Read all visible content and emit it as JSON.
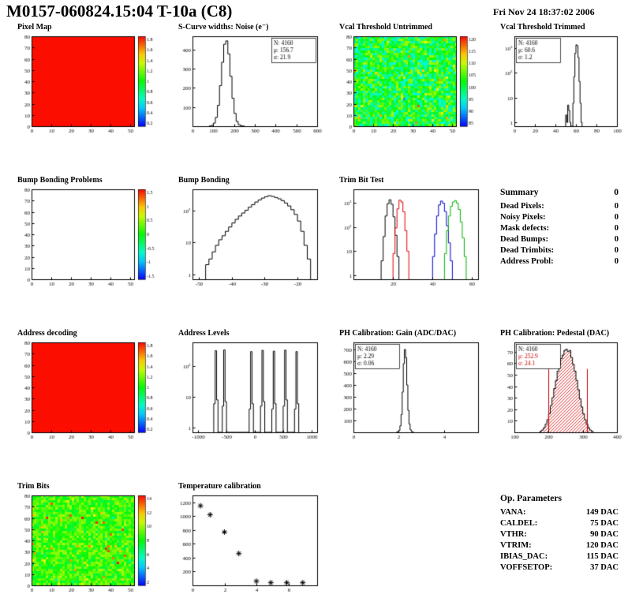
{
  "header": {
    "title": "M0157-060824.15:04 T-10a (C8)",
    "date": "Fri Nov 24 18:37:02 2006"
  },
  "summary": {
    "title": "Summary",
    "total": "0",
    "rows": [
      {
        "label": "Dead Pixels:",
        "value": "0"
      },
      {
        "label": "Noisy Pixels:",
        "value": "0"
      },
      {
        "label": "Mask defects:",
        "value": "0"
      },
      {
        "label": "Dead Bumps:",
        "value": "0"
      },
      {
        "label": "Dead Trimbits:",
        "value": "0"
      },
      {
        "label": "Address Probl:",
        "value": "0"
      }
    ]
  },
  "op_parameters": {
    "title": "Op. Parameters",
    "rows": [
      {
        "label": "VANA:",
        "value": "149 DAC"
      },
      {
        "label": "CALDEL:",
        "value": "75 DAC"
      },
      {
        "label": "VTHR:",
        "value": "90 DAC"
      },
      {
        "label": "VTRIM:",
        "value": "120 DAC"
      },
      {
        "label": "IBIAS_DAC:",
        "value": "115 DAC"
      },
      {
        "label": "VOFFSETOP:",
        "value": "37 DAC"
      }
    ]
  },
  "chart_data": [
    {
      "type": "heatmap",
      "title": "Pixel Map",
      "fill_style": "uniform",
      "color": "#fb0d00",
      "xlim": [
        0,
        52
      ],
      "ylim": [
        0,
        80
      ],
      "xticks": [
        0,
        10,
        20,
        30,
        40,
        50
      ],
      "yticks": [
        0,
        10,
        20,
        30,
        40,
        50,
        60,
        70,
        80
      ],
      "colorbar_ticks": [
        "1.8",
        "1.6",
        "1.4",
        "1.2",
        "1",
        "0.8",
        "0.6",
        "0.4",
        "0.2"
      ]
    },
    {
      "type": "histogram",
      "title": "S-Curve widths: Noise (e⁻)",
      "xlim": [
        0,
        600
      ],
      "xticks": [
        0,
        100,
        200,
        300,
        400,
        500,
        600
      ],
      "ylim": [
        0,
        470
      ],
      "yticks": [
        100,
        200,
        300,
        400
      ],
      "bin_width": 10,
      "bins": [
        [
          80,
          1
        ],
        [
          90,
          4
        ],
        [
          100,
          16
        ],
        [
          110,
          46
        ],
        [
          120,
          109
        ],
        [
          130,
          212
        ],
        [
          140,
          334
        ],
        [
          150,
          428
        ],
        [
          160,
          446
        ],
        [
          170,
          378
        ],
        [
          180,
          261
        ],
        [
          190,
          146
        ],
        [
          200,
          67
        ],
        [
          210,
          25
        ],
        [
          220,
          8
        ],
        [
          230,
          3
        ],
        [
          240,
          1
        ]
      ],
      "stats": {
        "pos": "right",
        "lines": [
          "N: 4160",
          "μ: 156.7",
          "σ: 21.9"
        ]
      }
    },
    {
      "type": "heatmap",
      "title": "Vcal Threshold Untrimmed",
      "fill_style": "noise",
      "noise": {
        "base": 0.47,
        "spread": 0.2,
        "outlier": 0.06,
        "seed": 13
      },
      "xlim": [
        0,
        52
      ],
      "ylim": [
        0,
        80
      ],
      "xticks": [
        0,
        10,
        20,
        30,
        40,
        50
      ],
      "yticks": [
        0,
        10,
        20,
        30,
        40,
        50,
        60,
        70,
        80
      ],
      "colorbar_ticks": [
        "120",
        "115",
        "110",
        "105",
        "100",
        "95",
        "90",
        "85"
      ]
    },
    {
      "type": "histogram",
      "title": "Vcal Threshold Trimmed",
      "log": true,
      "ylog": [
        0.7,
        3000
      ],
      "ytick_decades": [
        1,
        10,
        100,
        1000
      ],
      "xlim": [
        0,
        100
      ],
      "xticks": [
        0,
        20,
        40,
        60,
        80,
        100
      ],
      "bin_width": 1,
      "bins": [
        [
          50,
          2
        ],
        [
          51,
          1
        ],
        [
          52,
          5
        ],
        [
          53,
          3
        ],
        [
          54,
          1
        ],
        [
          57,
          6
        ],
        [
          58,
          70
        ],
        [
          59,
          620
        ],
        [
          60,
          1350
        ],
        [
          61,
          1250
        ],
        [
          62,
          420
        ],
        [
          63,
          45
        ],
        [
          64,
          6
        ],
        [
          65,
          1
        ]
      ],
      "stats": {
        "pos": "left",
        "lines": [
          "N: 4160",
          "μ: 60.6",
          "σ: 1.2"
        ]
      }
    },
    {
      "type": "heatmap",
      "title": "Bump Bonding Problems",
      "fill_style": "empty",
      "xlim": [
        0,
        52
      ],
      "ylim": [
        0,
        80
      ],
      "xticks": [
        0,
        10,
        20,
        30,
        40,
        50
      ],
      "yticks": [
        0,
        10,
        20,
        30,
        40,
        50,
        60,
        70,
        80
      ],
      "colorbar_ticks": [
        "1.5",
        "1",
        "0.5",
        "0",
        "-0.5",
        "-1",
        "-1.5"
      ]
    },
    {
      "type": "histogram",
      "title": "Bump Bonding",
      "log": true,
      "ylog": [
        0.7,
        450
      ],
      "ytick_decades": [
        1,
        10,
        100
      ],
      "xlim": [
        -52,
        -14
      ],
      "xticks": [
        -50,
        -40,
        -30,
        -20
      ],
      "bin_width": 1,
      "bins": [
        [
          -48,
          2
        ],
        [
          -47,
          3
        ],
        [
          -46,
          5
        ],
        [
          -45,
          8
        ],
        [
          -44,
          12
        ],
        [
          -43,
          16
        ],
        [
          -42,
          22
        ],
        [
          -41,
          30
        ],
        [
          -40,
          40
        ],
        [
          -39,
          52
        ],
        [
          -38,
          66
        ],
        [
          -37,
          82
        ],
        [
          -36,
          100
        ],
        [
          -35,
          125
        ],
        [
          -34,
          150
        ],
        [
          -33,
          180
        ],
        [
          -32,
          210
        ],
        [
          -31,
          240
        ],
        [
          -30,
          265
        ],
        [
          -29,
          285
        ],
        [
          -28,
          270
        ],
        [
          -27,
          250
        ],
        [
          -26,
          228
        ],
        [
          -25,
          200
        ],
        [
          -24,
          168
        ],
        [
          -23,
          136
        ],
        [
          -22,
          104
        ],
        [
          -21,
          74
        ],
        [
          -20,
          46
        ],
        [
          -19,
          22
        ],
        [
          -18,
          8
        ],
        [
          -17,
          3
        ]
      ]
    },
    {
      "type": "multi_histogram",
      "title": "Trim Bit Test",
      "log": true,
      "ylog": [
        0.7,
        3500
      ],
      "ytick_decades": [
        1,
        10,
        100,
        1000
      ],
      "xlim": [
        0,
        63
      ],
      "xticks": [
        20,
        40,
        60
      ],
      "bin_width": 1,
      "series": [
        {
          "color": "#000000",
          "bins": [
            [
              14,
              4
            ],
            [
              15,
              40
            ],
            [
              16,
              280
            ],
            [
              17,
              900
            ],
            [
              18,
              1300
            ],
            [
              19,
              850
            ],
            [
              20,
              260
            ],
            [
              21,
              45
            ],
            [
              22,
              6
            ]
          ]
        },
        {
          "color": "#e00000",
          "bins": [
            [
              20,
              8
            ],
            [
              21,
              90
            ],
            [
              22,
              550
            ],
            [
              23,
              1250
            ],
            [
              24,
              1050
            ],
            [
              25,
              420
            ],
            [
              26,
              70
            ],
            [
              27,
              10
            ]
          ]
        },
        {
          "color": "#0000d0",
          "bins": [
            [
              40,
              6
            ],
            [
              41,
              50
            ],
            [
              42,
              280
            ],
            [
              43,
              800
            ],
            [
              44,
              1150
            ],
            [
              45,
              950
            ],
            [
              46,
              430
            ],
            [
              47,
              110
            ],
            [
              48,
              22
            ],
            [
              49,
              4
            ]
          ]
        },
        {
          "color": "#00b400",
          "bins": [
            [
              46,
              8
            ],
            [
              47,
              70
            ],
            [
              48,
              280
            ],
            [
              49,
              700
            ],
            [
              50,
              1050
            ],
            [
              51,
              1200
            ],
            [
              52,
              950
            ],
            [
              53,
              520
            ],
            [
              54,
              160
            ],
            [
              55,
              35
            ],
            [
              56,
              6
            ]
          ]
        }
      ]
    },
    {
      "type": "heatmap",
      "title": "Address decoding",
      "fill_style": "uniform",
      "color": "#fb0d00",
      "xlim": [
        0,
        52
      ],
      "ylim": [
        0,
        80
      ],
      "xticks": [
        0,
        10,
        20,
        30,
        40,
        50
      ],
      "yticks": [
        0,
        10,
        20,
        30,
        40,
        50,
        60,
        70,
        80
      ],
      "colorbar_ticks": [
        "1.8",
        "1.6",
        "1.4",
        "1.2",
        "1",
        "0.8",
        "0.6",
        "0.4",
        "0.2"
      ]
    },
    {
      "type": "histogram",
      "title": "Address Levels",
      "log": true,
      "ylog": [
        0.7,
        600
      ],
      "ytick_decades": [
        1,
        10,
        100
      ],
      "xlim": [
        -1100,
        1100
      ],
      "xticks": [
        -1000,
        -500,
        0,
        500,
        1000
      ],
      "bin_width": 25,
      "bins": [
        [
          -725,
          6
        ],
        [
          -700,
          320
        ],
        [
          -675,
          8
        ],
        [
          -575,
          5
        ],
        [
          -550,
          340
        ],
        [
          -525,
          7
        ],
        [
          -100,
          4
        ],
        [
          -75,
          300
        ],
        [
          -50,
          6
        ],
        [
          100,
          5
        ],
        [
          125,
          330
        ],
        [
          150,
          7
        ],
        [
          300,
          4
        ],
        [
          325,
          310
        ],
        [
          350,
          6
        ],
        [
          500,
          5
        ],
        [
          525,
          335
        ],
        [
          550,
          8
        ],
        [
          700,
          4
        ],
        [
          725,
          300
        ],
        [
          750,
          6
        ]
      ]
    },
    {
      "type": "histogram",
      "title": "PH Calibration: Gain (ADC/DAC)",
      "xlim": [
        0,
        5.5
      ],
      "xticks": [
        0,
        2,
        4
      ],
      "ylim": [
        0,
        760
      ],
      "yticks": [
        100,
        200,
        300,
        400,
        500,
        600,
        700
      ],
      "bin_width": 0.05,
      "bins": [
        [
          1.9,
          2
        ],
        [
          1.95,
          5
        ],
        [
          2,
          15
        ],
        [
          2.05,
          55
        ],
        [
          2.1,
          150
        ],
        [
          2.15,
          340
        ],
        [
          2.2,
          580
        ],
        [
          2.25,
          700
        ],
        [
          2.3,
          630
        ],
        [
          2.35,
          400
        ],
        [
          2.4,
          185
        ],
        [
          2.45,
          70
        ],
        [
          2.5,
          22
        ],
        [
          2.55,
          7
        ],
        [
          2.6,
          2
        ]
      ],
      "stats": {
        "pos": "left",
        "lines": [
          "N: 4160",
          "μ: 2.29",
          "σ: 0.06"
        ]
      }
    },
    {
      "type": "histogram",
      "title": "PH Calibration: Pedestal (DAC)",
      "xlim": [
        100,
        400
      ],
      "xticks": [
        100,
        200,
        300,
        400
      ],
      "ylim": [
        0,
        78
      ],
      "yticks": [
        10,
        20,
        30,
        40,
        50,
        60,
        70
      ],
      "bin_width": 5,
      "fill": "hatch",
      "fill_color": "#e03030",
      "bins": [
        [
          175,
          1
        ],
        [
          180,
          2
        ],
        [
          185,
          4
        ],
        [
          190,
          7
        ],
        [
          195,
          11
        ],
        [
          200,
          16
        ],
        [
          205,
          23
        ],
        [
          210,
          30
        ],
        [
          215,
          38
        ],
        [
          220,
          45
        ],
        [
          225,
          53
        ],
        [
          230,
          58
        ],
        [
          235,
          64
        ],
        [
          240,
          67
        ],
        [
          245,
          71
        ],
        [
          250,
          72
        ],
        [
          255,
          70
        ],
        [
          260,
          71
        ],
        [
          265,
          65
        ],
        [
          270,
          59
        ],
        [
          275,
          53
        ],
        [
          280,
          45
        ],
        [
          285,
          37
        ],
        [
          290,
          29
        ],
        [
          295,
          22
        ],
        [
          300,
          16
        ],
        [
          305,
          11
        ],
        [
          310,
          7
        ],
        [
          315,
          4
        ],
        [
          320,
          2
        ],
        [
          325,
          1
        ]
      ],
      "vlines": [
        {
          "x": 200,
          "y": 55,
          "color": "#cc0000"
        },
        {
          "x": 312,
          "y": 55,
          "color": "#cc0000"
        }
      ],
      "stats": {
        "pos": "left",
        "lines": [
          "N: 4160",
          "μ: 252.9",
          "σ: 24.1"
        ],
        "colors": [
          "#000000",
          "#cc0000",
          "#cc0000"
        ]
      }
    },
    {
      "type": "heatmap",
      "title": "Trim Bits",
      "fill_style": "noise",
      "noise": {
        "base": 0.55,
        "spread": 0.12,
        "outlier": 0.08,
        "seed": 29
      },
      "xlim": [
        0,
        52
      ],
      "ylim": [
        0,
        80
      ],
      "xticks": [
        0,
        10,
        20,
        30,
        40,
        50
      ],
      "yticks": [
        0,
        10,
        20,
        30,
        40,
        50,
        60,
        70,
        80
      ],
      "colorbar_ticks": [
        "14",
        "12",
        "10",
        "8",
        "6",
        "4",
        "2"
      ]
    },
    {
      "type": "scatter",
      "title": "Temperature calibration",
      "xlim": [
        0,
        7.8
      ],
      "xticks": [
        0,
        2,
        4,
        6
      ],
      "ylim": [
        0,
        1300
      ],
      "yticks": [
        200,
        400,
        600,
        800,
        1000,
        1200
      ],
      "points": [
        [
          0.5,
          1150
        ],
        [
          1.1,
          1020
        ],
        [
          2,
          770
        ],
        [
          2.9,
          460
        ],
        [
          4,
          60
        ],
        [
          4.9,
          38
        ],
        [
          5.9,
          38
        ],
        [
          6.9,
          38
        ]
      ]
    }
  ]
}
